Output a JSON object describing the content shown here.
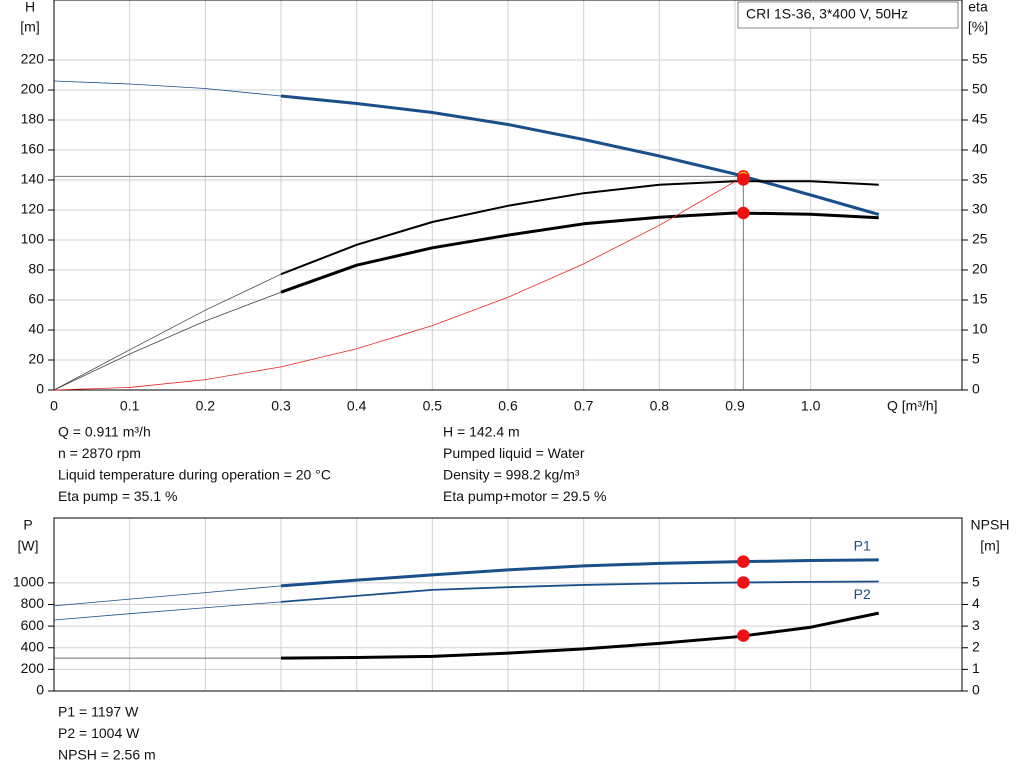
{
  "chart_data": [
    {
      "type": "line",
      "legend_box": "CRI 1S-36, 3*400 V, 50Hz",
      "y_label": "H",
      "y_unit": "[m]",
      "y2_label": "eta",
      "y2_unit": "[%]",
      "x_label": "Q [m³/h]",
      "xlim": [
        0,
        1.2
      ],
      "xticks": [
        0,
        0.1,
        0.2,
        0.3,
        0.4,
        0.5,
        0.6,
        0.7,
        0.8,
        0.9,
        {
          "value": 1,
          "label": "1.0"
        }
      ],
      "ylim": [
        0,
        260
      ],
      "yticks": [
        0,
        20,
        40,
        60,
        80,
        100,
        120,
        140,
        160,
        180,
        200,
        220
      ],
      "y2lim": [
        0,
        65
      ],
      "y2ticks": [
        0,
        5,
        10,
        15,
        20,
        25,
        30,
        35,
        40,
        45,
        50,
        55
      ],
      "grid": true,
      "show_xtick_labels": true,
      "operating_range_start": 0.3,
      "duty_x": 0.911,
      "crosshair": true,
      "x": [
        0,
        0.1,
        0.2,
        0.3,
        0.4,
        0.5,
        0.6,
        0.7,
        0.8,
        0.9,
        1.0,
        1.09
      ],
      "series": [
        {
          "color": "#1b4f8a",
          "line_width": 3,
          "values": [
            206,
            204,
            201,
            196,
            191,
            185,
            177,
            167,
            156,
            144,
            130,
            117
          ],
          "duty": 142.4,
          "duty_fill": "#f5c400"
        },
        {
          "color": "#000000",
          "line_width": 2,
          "axis": "y2",
          "values": [
            0,
            6.7,
            13.3,
            19.3,
            24.2,
            28,
            30.7,
            32.8,
            34.2,
            34.8,
            34.8,
            34.2
          ],
          "duty": 35.1,
          "duty_fill": "#ee1111"
        },
        {
          "color": "#000000",
          "line_width": 3,
          "axis": "y2",
          "values": [
            0,
            6,
            11.5,
            16.3,
            20.8,
            23.7,
            25.8,
            27.7,
            28.8,
            29.5,
            29.3,
            28.7
          ],
          "duty": 29.5,
          "duty_fill": "#ee1111"
        },
        {
          "color": "#ee2222",
          "line_width": 0.8,
          "values": [
            0,
            1.7,
            6.9,
            15.4,
            27.5,
            42.9,
            61.8,
            84.1,
            109.8,
            139,
            null,
            null
          ]
        }
      ],
      "notes": {
        "left": [
          "Q = 0.911 m³/h",
          "n = 2870 rpm",
          "Liquid temperature during operation = 20 °C",
          "Eta pump = 35.1 %"
        ],
        "right": [
          "H = 142.4 m",
          "Pumped liquid = Water",
          "Density = 998.2 kg/m³",
          "Eta pump+motor = 29.5 %"
        ]
      }
    },
    {
      "type": "line",
      "y_label": "P",
      "y_unit": "[W]",
      "y2_label": "NPSH",
      "y2_unit": "[m]",
      "xlim": [
        0,
        1.2
      ],
      "xticks": [
        0,
        0.1,
        0.2,
        0.3,
        0.4,
        0.5,
        0.6,
        0.7,
        0.8,
        0.9,
        1
      ],
      "ylim": [
        0,
        1600
      ],
      "yticks": [
        0,
        200,
        400,
        600,
        800,
        1000
      ],
      "y2lim": [
        0,
        8
      ],
      "y2ticks": [
        0,
        1,
        2,
        3,
        4,
        5
      ],
      "grid": true,
      "show_xtick_labels": false,
      "operating_range_start": 0.3,
      "duty_x": 0.911,
      "crosshair": false,
      "x": [
        0,
        0.1,
        0.2,
        0.3,
        0.4,
        0.5,
        0.6,
        0.7,
        0.8,
        0.9,
        1.0,
        1.09
      ],
      "series": [
        {
          "name": "P1",
          "color": "#1b4f8a",
          "line_width": 3,
          "values": [
            787,
            850,
            910,
            972,
            1025,
            1074,
            1120,
            1157,
            1180,
            1195,
            1207,
            1213
          ],
          "duty": 1197,
          "duty_fill": "#ee1111"
        },
        {
          "name": "P2",
          "color": "#1b4f8a",
          "line_width": 1.8,
          "values": [
            657,
            715,
            770,
            824,
            880,
            935,
            960,
            981,
            995,
            1003,
            1009,
            1013
          ],
          "duty": 1004,
          "duty_fill": "#ee1111"
        },
        {
          "color": "#000000",
          "line_width": 3,
          "axis": "y2",
          "values": [
            1.52,
            1.52,
            1.52,
            1.52,
            1.55,
            1.6,
            1.75,
            1.95,
            2.2,
            2.5,
            2.95,
            3.6
          ],
          "duty": 2.56,
          "duty_fill": "#ee1111"
        }
      ],
      "notes": {
        "left": [
          "P1 = 1197 W",
          "P2 = 1004 W",
          "NPSH = 2.56 m"
        ]
      }
    }
  ]
}
